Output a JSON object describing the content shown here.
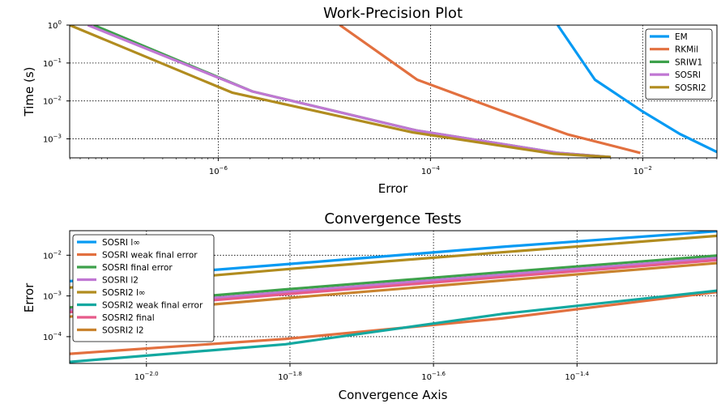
{
  "chart_data": [
    {
      "type": "line",
      "title": "Work-Precision Plot",
      "xlabel": "Error",
      "ylabel": "Time (s)",
      "xscale": "log",
      "yscale": "log",
      "xlim": [
        3.98e-08,
        0.0501
      ],
      "ylim": [
        0.000316,
        1.0
      ],
      "xticks": [
        {
          "value": 1e-06,
          "base": "10",
          "exp": "−6"
        },
        {
          "value": 0.0001,
          "base": "10",
          "exp": "−4"
        },
        {
          "value": 0.01,
          "base": "10",
          "exp": "−2"
        }
      ],
      "yticks": [
        {
          "value": 1,
          "base": "10",
          "exp": "0"
        },
        {
          "value": 0.1,
          "base": "10",
          "exp": "−1"
        },
        {
          "value": 0.01,
          "base": "10",
          "exp": "−2"
        },
        {
          "value": 0.001,
          "base": "10",
          "exp": "−3"
        }
      ],
      "grid": true,
      "legend_position": "top-right",
      "series": [
        {
          "name": "EM",
          "color": "#069af3",
          "x": [
            0.00158,
            0.00355,
            0.01,
            0.0224,
            0.0501
          ],
          "y": [
            1.0,
            0.0363,
            0.00525,
            0.00135,
            0.00045
          ]
        },
        {
          "name": "RKMil",
          "color": "#e2703f",
          "x": [
            1.4e-05,
            7.5e-05,
            0.000447,
            0.00195,
            0.0095
          ],
          "y": [
            1.0,
            0.0363,
            0.00575,
            0.00132,
            0.000427
          ]
        },
        {
          "name": "SRIW1",
          "color": "#3da14b",
          "x": [
            6.7e-08,
            2.1e-06,
            7.4e-05,
            0.00159,
            0.00501
          ],
          "y": [
            1.0,
            0.0178,
            0.00166,
            0.000427,
            0.000331
          ]
        },
        {
          "name": "SOSRI",
          "color": "#c077d3",
          "x": [
            5.9e-08,
            2.1e-06,
            7.4e-05,
            0.00159,
            0.00501
          ],
          "y": [
            1.0,
            0.0178,
            0.00166,
            0.000427,
            0.000331
          ]
        },
        {
          "name": "SOSRI2",
          "color": "#b18c1f",
          "x": [
            3.98e-08,
            1.35e-06,
            6.8e-05,
            0.00145,
            0.00501
          ],
          "y": [
            1.0,
            0.0166,
            0.00148,
            0.000407,
            0.000331
          ]
        }
      ]
    },
    {
      "type": "line",
      "title": "Convergence Tests",
      "xlabel": "Convergence Axis",
      "ylabel": "Error",
      "xscale": "log",
      "yscale": "log",
      "xlim": [
        -2.107,
        -1.205
      ],
      "ylim": [
        2.2e-05,
        0.04
      ],
      "xticks": [
        {
          "value": -2.0,
          "base": "10",
          "exp": "−2.0"
        },
        {
          "value": -1.8,
          "base": "10",
          "exp": "−1.8"
        },
        {
          "value": -1.6,
          "base": "10",
          "exp": "−1.6"
        },
        {
          "value": -1.4,
          "base": "10",
          "exp": "−1.4"
        }
      ],
      "yticks": [
        {
          "value": 0.01,
          "base": "10",
          "exp": "−2"
        },
        {
          "value": 0.001,
          "base": "10",
          "exp": "−3"
        },
        {
          "value": 0.0001,
          "base": "10",
          "exp": "−4"
        }
      ],
      "grid": true,
      "legend_position": "left",
      "series": [
        {
          "name": "SOSRI l∞",
          "color": "#069af3",
          "x": [
            -2.107,
            -1.806,
            -1.505,
            -1.204
          ],
          "y": [
            0.0023,
            0.006,
            0.016,
            0.039
          ]
        },
        {
          "name": "SOSRI weak final error",
          "color": "#e2703f",
          "x": [
            -2.107,
            -1.806,
            -1.505,
            -1.204
          ],
          "y": [
            3.8e-05,
            8.8e-05,
            0.00028,
            0.00125
          ]
        },
        {
          "name": "SOSRI final error",
          "color": "#3da14b",
          "x": [
            -2.107,
            -1.806,
            -1.505,
            -1.204
          ],
          "y": [
            0.00052,
            0.00145,
            0.0038,
            0.0098
          ]
        },
        {
          "name": "SOSRI l2",
          "color": "#c077d3",
          "x": [
            -2.107,
            -1.806,
            -1.505,
            -1.204
          ],
          "y": [
            0.00045,
            0.00125,
            0.0033,
            0.0085
          ]
        },
        {
          "name": "SOSRI2 l∞",
          "color": "#b18c1f",
          "x": [
            -2.107,
            -1.806,
            -1.505,
            -1.204
          ],
          "y": [
            0.0016,
            0.0045,
            0.0118,
            0.03
          ]
        },
        {
          "name": "SOSRI2 weak final error",
          "color": "#13a8a0",
          "x": [
            -2.107,
            -1.806,
            -1.505,
            -1.204
          ],
          "y": [
            2.4e-05,
            6.5e-05,
            0.00036,
            0.00135
          ]
        },
        {
          "name": "SOSRI2 final",
          "color": "#e65b8a",
          "x": [
            -2.107,
            -1.806,
            -1.505,
            -1.204
          ],
          "y": [
            0.0004,
            0.0011,
            0.0029,
            0.0076
          ]
        },
        {
          "name": "SOSRI2 l2",
          "color": "#c9832e",
          "x": [
            -2.107,
            -1.806,
            -1.505,
            -1.204
          ],
          "y": [
            0.00031,
            0.00088,
            0.0024,
            0.0064
          ]
        }
      ]
    }
  ]
}
